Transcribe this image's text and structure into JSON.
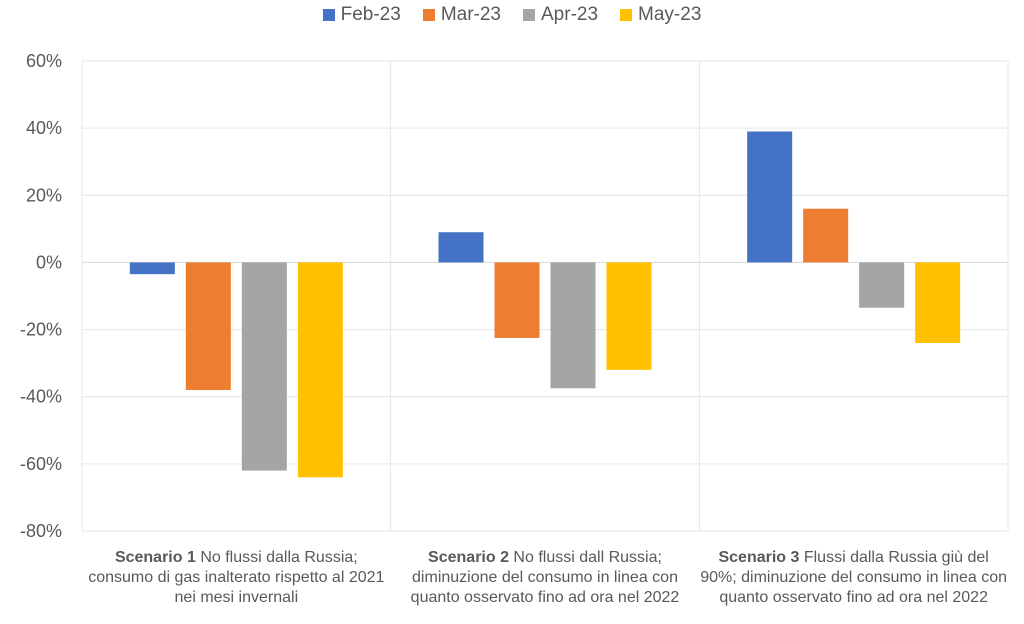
{
  "chart_data": {
    "type": "bar",
    "categories": [
      {
        "bold": "Scenario 1",
        "text": " No flussi dalla Russia; consumo di gas inalterato rispetto al 2021 nei mesi invernali"
      },
      {
        "bold": "Scenario 2",
        "text": " No flussi dall Russia; diminuzione del consumo in linea con quanto osservato fino ad ora nel 2022"
      },
      {
        "bold": "Scenario 3",
        "text": " Flussi dalla Russia giù del 90%; diminuzione del consumo in linea con quanto osservato fino ad ora nel 2022"
      }
    ],
    "series": [
      {
        "name": "Feb-23",
        "color": "#4472C4",
        "values": [
          -3.5,
          9,
          39
        ]
      },
      {
        "name": "Mar-23",
        "color": "#ED7D31",
        "values": [
          -38,
          -22.5,
          16
        ]
      },
      {
        "name": "Apr-23",
        "color": "#A5A5A5",
        "values": [
          -62,
          -37.5,
          -13.5
        ]
      },
      {
        "name": "May-23",
        "color": "#FFC000",
        "values": [
          -64,
          -32,
          -24
        ]
      }
    ],
    "ylim": [
      -80,
      60
    ],
    "yticks": [
      "60%",
      "40%",
      "20%",
      "0%",
      "-20%",
      "-40%",
      "-60%",
      "-80%"
    ],
    "ytick_values": [
      60,
      40,
      20,
      0,
      -20,
      -40,
      -60,
      -80
    ],
    "legend_position": "top",
    "grid": true
  }
}
